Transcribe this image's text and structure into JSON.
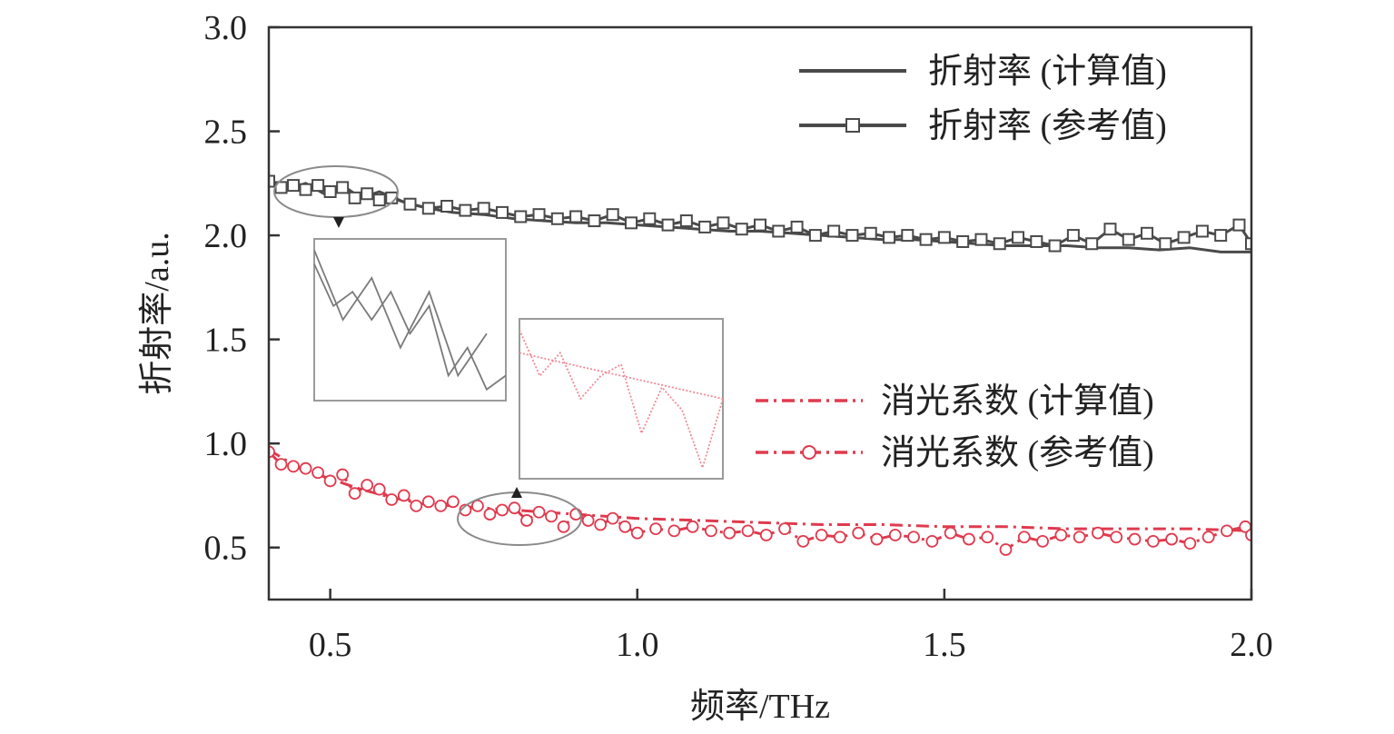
{
  "chart_data": {
    "type": "line",
    "title": "",
    "xlabel": "频率/THz",
    "ylabel": "折射率/a.u.",
    "xlim": [
      0.4,
      2.0
    ],
    "ylim": [
      0.25,
      3.0
    ],
    "x_ticks": [
      "0.5",
      "1.0",
      "1.5",
      "2.0"
    ],
    "y_ticks": [
      "0.5",
      "1.0",
      "1.5",
      "2.0",
      "2.5",
      "3.0"
    ],
    "grid": false,
    "legend_position": "top-right (refractive index), middle-right (extinction coefficient)",
    "colors": {
      "refractive": "#4a4a4a",
      "extinction": "#e03a4e",
      "inset_border": "#9a9a9a"
    },
    "series": [
      {
        "name": "折射率 (计算值)",
        "style": "solid",
        "marker": "none",
        "x": [
          0.4,
          0.43,
          0.46,
          0.49,
          0.52,
          0.55,
          0.58,
          0.62,
          0.66,
          0.7,
          0.75,
          0.8,
          0.85,
          0.9,
          0.95,
          1.0,
          1.05,
          1.1,
          1.15,
          1.2,
          1.25,
          1.3,
          1.35,
          1.4,
          1.45,
          1.5,
          1.55,
          1.6,
          1.65,
          1.7,
          1.75,
          1.8,
          1.85,
          1.9,
          1.95,
          2.0
        ],
        "y": [
          2.27,
          2.22,
          2.25,
          2.2,
          2.24,
          2.18,
          2.21,
          2.16,
          2.13,
          2.11,
          2.1,
          2.08,
          2.07,
          2.06,
          2.06,
          2.05,
          2.04,
          2.03,
          2.02,
          2.02,
          2.01,
          2.0,
          1.99,
          1.98,
          1.98,
          1.97,
          1.96,
          1.95,
          1.95,
          1.95,
          1.94,
          1.94,
          1.93,
          1.94,
          1.92,
          1.92
        ]
      },
      {
        "name": "折射率 (参考值)",
        "style": "solid",
        "marker": "square",
        "x": [
          0.4,
          0.42,
          0.44,
          0.46,
          0.48,
          0.5,
          0.52,
          0.54,
          0.56,
          0.58,
          0.6,
          0.63,
          0.66,
          0.69,
          0.72,
          0.75,
          0.78,
          0.81,
          0.84,
          0.87,
          0.9,
          0.93,
          0.96,
          0.99,
          1.02,
          1.05,
          1.08,
          1.11,
          1.14,
          1.17,
          1.2,
          1.23,
          1.26,
          1.29,
          1.32,
          1.35,
          1.38,
          1.41,
          1.44,
          1.47,
          1.5,
          1.53,
          1.56,
          1.59,
          1.62,
          1.65,
          1.68,
          1.71,
          1.74,
          1.77,
          1.8,
          1.83,
          1.86,
          1.89,
          1.92,
          1.95,
          1.98,
          2.0
        ],
        "y": [
          2.26,
          2.23,
          2.24,
          2.22,
          2.24,
          2.21,
          2.23,
          2.18,
          2.2,
          2.17,
          2.18,
          2.15,
          2.13,
          2.14,
          2.12,
          2.13,
          2.11,
          2.09,
          2.1,
          2.08,
          2.09,
          2.07,
          2.1,
          2.06,
          2.08,
          2.05,
          2.07,
          2.04,
          2.06,
          2.03,
          2.05,
          2.02,
          2.04,
          2.0,
          2.02,
          2.0,
          2.01,
          1.99,
          2.0,
          1.98,
          1.99,
          1.97,
          1.98,
          1.96,
          1.99,
          1.97,
          1.95,
          2.0,
          1.96,
          2.03,
          1.98,
          2.01,
          1.96,
          1.99,
          2.02,
          2.0,
          2.05,
          1.96
        ]
      },
      {
        "name": "消光系数 (计算值)",
        "style": "dash-dot",
        "marker": "none",
        "x": [
          0.4,
          0.45,
          0.5,
          0.55,
          0.6,
          0.65,
          0.7,
          0.75,
          0.8,
          0.85,
          0.9,
          0.95,
          1.0,
          1.1,
          1.2,
          1.3,
          1.4,
          1.5,
          1.6,
          1.7,
          1.8,
          1.9,
          2.0
        ],
        "y": [
          0.97,
          0.88,
          0.83,
          0.78,
          0.74,
          0.71,
          0.7,
          0.69,
          0.68,
          0.67,
          0.66,
          0.65,
          0.64,
          0.63,
          0.62,
          0.61,
          0.61,
          0.6,
          0.6,
          0.59,
          0.59,
          0.59,
          0.58
        ]
      },
      {
        "name": "消光系数 (参考值)",
        "style": "dash-dot",
        "marker": "circle",
        "x": [
          0.4,
          0.42,
          0.44,
          0.46,
          0.48,
          0.5,
          0.52,
          0.54,
          0.56,
          0.58,
          0.6,
          0.62,
          0.64,
          0.66,
          0.68,
          0.7,
          0.72,
          0.74,
          0.76,
          0.78,
          0.8,
          0.82,
          0.84,
          0.86,
          0.88,
          0.9,
          0.92,
          0.94,
          0.96,
          0.98,
          1.0,
          1.03,
          1.06,
          1.09,
          1.12,
          1.15,
          1.18,
          1.21,
          1.24,
          1.27,
          1.3,
          1.33,
          1.36,
          1.39,
          1.42,
          1.45,
          1.48,
          1.51,
          1.54,
          1.57,
          1.6,
          1.63,
          1.66,
          1.69,
          1.72,
          1.75,
          1.78,
          1.81,
          1.84,
          1.87,
          1.9,
          1.93,
          1.96,
          1.99,
          2.0
        ],
        "y": [
          0.96,
          0.9,
          0.89,
          0.88,
          0.86,
          0.82,
          0.85,
          0.76,
          0.8,
          0.78,
          0.73,
          0.75,
          0.7,
          0.72,
          0.7,
          0.72,
          0.68,
          0.7,
          0.66,
          0.68,
          0.69,
          0.63,
          0.67,
          0.65,
          0.6,
          0.66,
          0.63,
          0.61,
          0.64,
          0.6,
          0.57,
          0.59,
          0.58,
          0.6,
          0.58,
          0.57,
          0.58,
          0.56,
          0.59,
          0.53,
          0.56,
          0.55,
          0.57,
          0.54,
          0.56,
          0.55,
          0.53,
          0.57,
          0.54,
          0.55,
          0.49,
          0.55,
          0.53,
          0.56,
          0.55,
          0.57,
          0.55,
          0.54,
          0.53,
          0.54,
          0.52,
          0.55,
          0.58,
          0.6,
          0.56
        ]
      }
    ],
    "annotations": [
      {
        "type": "ellipse-zoom",
        "target_series": "折射率",
        "x_range": [
          0.4,
          0.6
        ]
      },
      {
        "type": "ellipse-zoom",
        "target_series": "消光系数",
        "x_range": [
          0.7,
          0.9
        ]
      }
    ]
  }
}
